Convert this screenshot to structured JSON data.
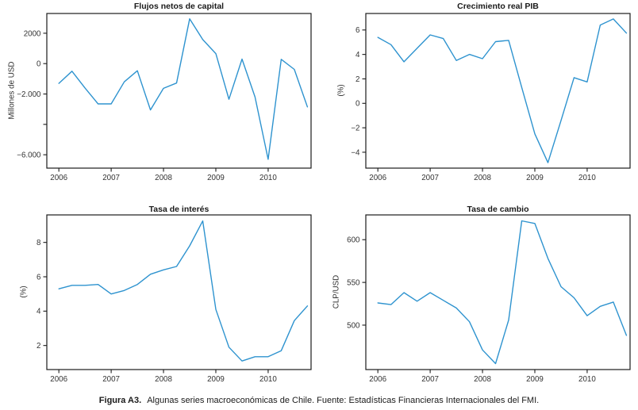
{
  "figure": {
    "caption_label": "Figura A3.",
    "caption_text": "Algunas series macroeconómicas de Chile. Fuente: Estadísticas Financieras Internacionales del FMI."
  },
  "colors": {
    "line": "#2e93cf",
    "axis": "#1c1c1c",
    "tick_label": "#333333",
    "title": "#1a1a1a"
  },
  "chart_data": [
    {
      "id": "flujos-netos-de-capital",
      "type": "line",
      "title": "Flujos netos de capital",
      "xlabel": "",
      "ylabel": "Millones de USD",
      "legend": null,
      "grid": false,
      "x": [
        2006.0,
        2006.25,
        2006.5,
        2006.75,
        2007.0,
        2007.25,
        2007.5,
        2007.75,
        2008.0,
        2008.25,
        2008.5,
        2008.75,
        2009.0,
        2009.25,
        2009.5,
        2009.75,
        2010.0,
        2010.25,
        2010.5,
        2010.75
      ],
      "values": [
        -1300,
        -500,
        -1600,
        -2650,
        -2650,
        -1200,
        -470,
        -3050,
        -1630,
        -1280,
        2950,
        1580,
        660,
        -2350,
        300,
        -2200,
        -6300,
        280,
        -380,
        -2850
      ],
      "xlim": [
        2005.77,
        2010.82
      ],
      "ylim": [
        -6880,
        3300
      ],
      "xticks": [
        {
          "v": 2006,
          "label": "2006"
        },
        {
          "v": 2007,
          "label": "2007"
        },
        {
          "v": 2008,
          "label": "2008"
        },
        {
          "v": 2009,
          "label": "2009"
        },
        {
          "v": 2010,
          "label": "2010"
        }
      ],
      "yticks": [
        {
          "v": 2000,
          "label": "2000"
        },
        {
          "v": 0,
          "label": "0"
        },
        {
          "v": -2000,
          "label": "−2.000"
        },
        {
          "v": -4000,
          "label": ""
        },
        {
          "v": -6000,
          "label": "−6.000"
        }
      ]
    },
    {
      "id": "crecimiento-real-pib",
      "type": "line",
      "title": "Crecimiento real PIB",
      "xlabel": "",
      "ylabel": "(%)",
      "legend": null,
      "grid": false,
      "x": [
        2006.0,
        2006.25,
        2006.5,
        2006.75,
        2007.0,
        2007.25,
        2007.5,
        2007.75,
        2008.0,
        2008.25,
        2008.5,
        2008.75,
        2009.0,
        2009.25,
        2009.5,
        2009.75,
        2010.0,
        2010.25,
        2010.5,
        2010.75
      ],
      "values": [
        5.4,
        4.8,
        3.4,
        4.5,
        5.6,
        5.3,
        3.5,
        4.0,
        3.65,
        5.05,
        5.15,
        1.3,
        -2.5,
        -4.85,
        -1.4,
        2.1,
        1.75,
        6.4,
        6.9,
        5.75
      ],
      "xlim": [
        2005.77,
        2010.82
      ],
      "ylim": [
        -5.3,
        7.35
      ],
      "xticks": [
        {
          "v": 2006,
          "label": "2006"
        },
        {
          "v": 2007,
          "label": "2007"
        },
        {
          "v": 2008,
          "label": "2008"
        },
        {
          "v": 2009,
          "label": "2009"
        },
        {
          "v": 2010,
          "label": "2010"
        }
      ],
      "yticks": [
        {
          "v": 6,
          "label": "6"
        },
        {
          "v": 4,
          "label": "4"
        },
        {
          "v": 2,
          "label": "2"
        },
        {
          "v": 0,
          "label": "0"
        },
        {
          "v": -2,
          "label": "−2"
        },
        {
          "v": -4,
          "label": "−4"
        }
      ]
    },
    {
      "id": "tasa-de-interes",
      "type": "line",
      "title": "Tasa de interés",
      "xlabel": "",
      "ylabel": "(%)",
      "legend": null,
      "grid": false,
      "x": [
        2006.0,
        2006.25,
        2006.5,
        2006.75,
        2007.0,
        2007.25,
        2007.5,
        2007.75,
        2008.0,
        2008.25,
        2008.5,
        2008.75,
        2009.0,
        2009.25,
        2009.5,
        2009.75,
        2010.0,
        2010.25,
        2010.5,
        2010.75
      ],
      "values": [
        5.3,
        5.5,
        5.5,
        5.55,
        5.0,
        5.2,
        5.55,
        6.15,
        6.4,
        6.6,
        7.8,
        9.25,
        4.1,
        1.9,
        1.1,
        1.35,
        1.35,
        1.7,
        3.45,
        4.3
      ],
      "xlim": [
        2005.77,
        2010.82
      ],
      "ylim": [
        0.6,
        9.6
      ],
      "xticks": [
        {
          "v": 2006,
          "label": "2006"
        },
        {
          "v": 2007,
          "label": "2007"
        },
        {
          "v": 2008,
          "label": "2008"
        },
        {
          "v": 2009,
          "label": "2009"
        },
        {
          "v": 2010,
          "label": "2010"
        }
      ],
      "yticks": [
        {
          "v": 8,
          "label": "8"
        },
        {
          "v": 6,
          "label": "6"
        },
        {
          "v": 4,
          "label": "4"
        },
        {
          "v": 2,
          "label": "2"
        }
      ]
    },
    {
      "id": "tasa-de-cambio",
      "type": "line",
      "title": "Tasa de cambio",
      "xlabel": "",
      "ylabel": "CLP/USD",
      "legend": null,
      "grid": false,
      "x": [
        2006.0,
        2006.25,
        2006.5,
        2006.75,
        2007.0,
        2007.25,
        2007.5,
        2007.75,
        2008.0,
        2008.25,
        2008.5,
        2008.75,
        2009.0,
        2009.25,
        2009.5,
        2009.75,
        2010.0,
        2010.25,
        2010.5,
        2010.75
      ],
      "values": [
        526,
        524,
        538,
        528,
        538,
        529,
        520,
        504,
        471,
        455,
        506,
        622,
        619,
        578,
        545,
        532,
        511,
        522,
        527,
        488
      ],
      "xlim": [
        2005.77,
        2010.82
      ],
      "ylim": [
        448,
        629
      ],
      "xticks": [
        {
          "v": 2006,
          "label": "2006"
        },
        {
          "v": 2007,
          "label": "2007"
        },
        {
          "v": 2008,
          "label": "2008"
        },
        {
          "v": 2009,
          "label": "2009"
        },
        {
          "v": 2010,
          "label": "2010"
        }
      ],
      "yticks": [
        {
          "v": 600,
          "label": "600"
        },
        {
          "v": 550,
          "label": "550"
        },
        {
          "v": 500,
          "label": "500"
        }
      ]
    }
  ]
}
